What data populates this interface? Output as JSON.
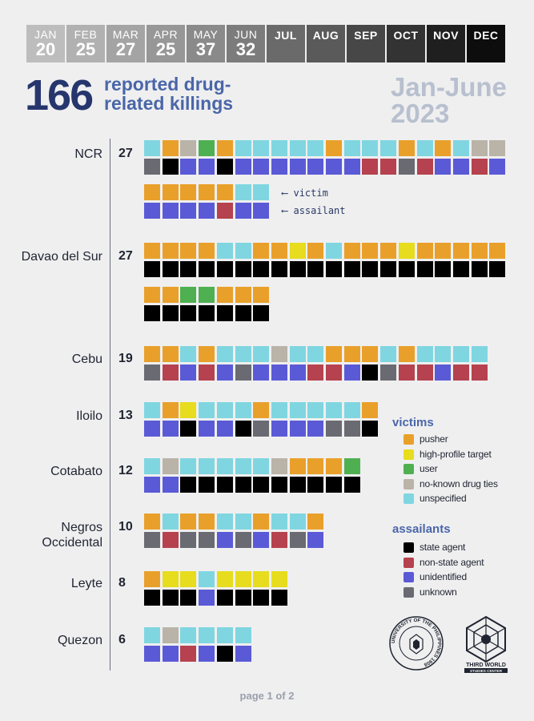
{
  "header": {
    "months": [
      {
        "name": "JAN",
        "count": "20",
        "color": "#bdbdbd"
      },
      {
        "name": "FEB",
        "count": "25",
        "color": "#b1b1b1"
      },
      {
        "name": "MAR",
        "count": "27",
        "color": "#a4a4a4"
      },
      {
        "name": "APR",
        "count": "25",
        "color": "#979797"
      },
      {
        "name": "MAY",
        "count": "37",
        "color": "#8a8a8a"
      },
      {
        "name": "JUN",
        "count": "32",
        "color": "#7c7c7c"
      },
      {
        "name": "JUL",
        "count": "",
        "color": "#6a6a6a"
      },
      {
        "name": "AUG",
        "count": "",
        "color": "#5a5a5a"
      },
      {
        "name": "SEP",
        "count": "",
        "color": "#474747"
      },
      {
        "name": "OCT",
        "count": "",
        "color": "#333333"
      },
      {
        "name": "NOV",
        "count": "",
        "color": "#1f1f1f"
      },
      {
        "name": "DEC",
        "count": "",
        "color": "#0d0d0d"
      }
    ],
    "headline_number": "166",
    "headline_text": "reported drug-related killings",
    "period": "Jan-June 2023"
  },
  "annotations": {
    "victim": "victim",
    "assailant": "assailant"
  },
  "legend": {
    "victims_title": "victims",
    "victims": [
      {
        "key": "P",
        "label": "pusher",
        "color": "#e9a02a"
      },
      {
        "key": "H",
        "label": "high-profile target",
        "color": "#e7dc1d"
      },
      {
        "key": "U",
        "label": "user",
        "color": "#4fb052"
      },
      {
        "key": "N",
        "label": "no-known drug ties",
        "color": "#bab3a8"
      },
      {
        "key": "X",
        "label": "unspecified",
        "color": "#7fd6e0"
      }
    ],
    "assailants_title": "assailants",
    "assailants": [
      {
        "key": "S",
        "label": "state agent",
        "color": "#000000"
      },
      {
        "key": "R",
        "label": "non-state agent",
        "color": "#b5424e"
      },
      {
        "key": "I",
        "label": "unidentified",
        "color": "#5b5ad6"
      },
      {
        "key": "K",
        "label": "unknown",
        "color": "#6a6a72"
      }
    ]
  },
  "logos": {
    "seal_text": "UNIVERSITY OF THE PHILIPPINES 1908",
    "org_name_line1": "THIRD WORLD",
    "org_name_line2": "STUDIES CENTER"
  },
  "footer": "page 1 of 2",
  "chart_data": {
    "type": "table",
    "title": "166 reported drug-related killings",
    "subtitle": "Jan-June 2023",
    "monthly_counts": [
      {
        "month": "JAN",
        "value": 20
      },
      {
        "month": "FEB",
        "value": 25
      },
      {
        "month": "MAR",
        "value": 27
      },
      {
        "month": "APR",
        "value": 25
      },
      {
        "month": "MAY",
        "value": 37
      },
      {
        "month": "JUN",
        "value": 32
      }
    ],
    "rows": [
      {
        "region": "NCR",
        "count": 27,
        "victims": [
          "X",
          "P",
          "N",
          "U",
          "P",
          "X",
          "X",
          "X",
          "X",
          "X",
          "P",
          "X",
          "X",
          "X",
          "P",
          "X",
          "P",
          "X",
          "N",
          "N",
          "P",
          "P",
          "P",
          "P",
          "P",
          "X",
          "X"
        ],
        "assailants": [
          "K",
          "S",
          "I",
          "I",
          "S",
          "I",
          "I",
          "I",
          "I",
          "I",
          "I",
          "I",
          "R",
          "R",
          "K",
          "R",
          "I",
          "I",
          "R",
          "I",
          "I",
          "I",
          "I",
          "I",
          "R",
          "I",
          "I"
        ]
      },
      {
        "region": "Davao del Sur",
        "count": 27,
        "victims": [
          "P",
          "P",
          "P",
          "P",
          "X",
          "X",
          "P",
          "P",
          "H",
          "P",
          "X",
          "P",
          "P",
          "P",
          "H",
          "P",
          "P",
          "P",
          "P",
          "P",
          "P",
          "P",
          "U",
          "U",
          "P",
          "P",
          "P"
        ],
        "assailants": [
          "S",
          "S",
          "S",
          "S",
          "S",
          "S",
          "S",
          "S",
          "S",
          "S",
          "S",
          "S",
          "S",
          "S",
          "S",
          "S",
          "S",
          "S",
          "S",
          "S",
          "S",
          "S",
          "S",
          "S",
          "S",
          "S",
          "S"
        ]
      },
      {
        "region": "Cebu",
        "count": 19,
        "victims": [
          "P",
          "P",
          "X",
          "P",
          "X",
          "X",
          "X",
          "N",
          "X",
          "X",
          "P",
          "P",
          "P",
          "X",
          "P",
          "X",
          "X",
          "X",
          "X"
        ],
        "assailants": [
          "K",
          "R",
          "I",
          "R",
          "I",
          "K",
          "I",
          "I",
          "I",
          "R",
          "R",
          "I",
          "S",
          "K",
          "R",
          "R",
          "I",
          "R",
          "R"
        ]
      },
      {
        "region": "Iloilo",
        "count": 13,
        "victims": [
          "X",
          "P",
          "H",
          "X",
          "X",
          "X",
          "P",
          "X",
          "X",
          "X",
          "X",
          "X",
          "P"
        ],
        "assailants": [
          "I",
          "I",
          "S",
          "I",
          "I",
          "S",
          "K",
          "I",
          "I",
          "I",
          "K",
          "K",
          "S"
        ]
      },
      {
        "region": "Cotabato",
        "count": 12,
        "victims": [
          "X",
          "N",
          "X",
          "X",
          "X",
          "X",
          "X",
          "N",
          "P",
          "P",
          "P",
          "U"
        ],
        "assailants": [
          "I",
          "I",
          "S",
          "S",
          "S",
          "S",
          "S",
          "S",
          "S",
          "S",
          "S",
          "S"
        ]
      },
      {
        "region": "Negros Occidental",
        "count": 10,
        "victims": [
          "P",
          "X",
          "P",
          "P",
          "X",
          "X",
          "P",
          "X",
          "X",
          "P"
        ],
        "assailants": [
          "K",
          "R",
          "K",
          "K",
          "I",
          "K",
          "I",
          "R",
          "K",
          "I"
        ]
      },
      {
        "region": "Leyte",
        "count": 8,
        "victims": [
          "P",
          "H",
          "H",
          "X",
          "H",
          "H",
          "H",
          "H"
        ],
        "assailants": [
          "S",
          "S",
          "S",
          "I",
          "S",
          "S",
          "S",
          "S"
        ]
      },
      {
        "region": "Quezon",
        "count": 6,
        "victims": [
          "X",
          "N",
          "X",
          "X",
          "X",
          "X"
        ],
        "assailants": [
          "I",
          "I",
          "R",
          "I",
          "S",
          "I"
        ]
      }
    ]
  }
}
